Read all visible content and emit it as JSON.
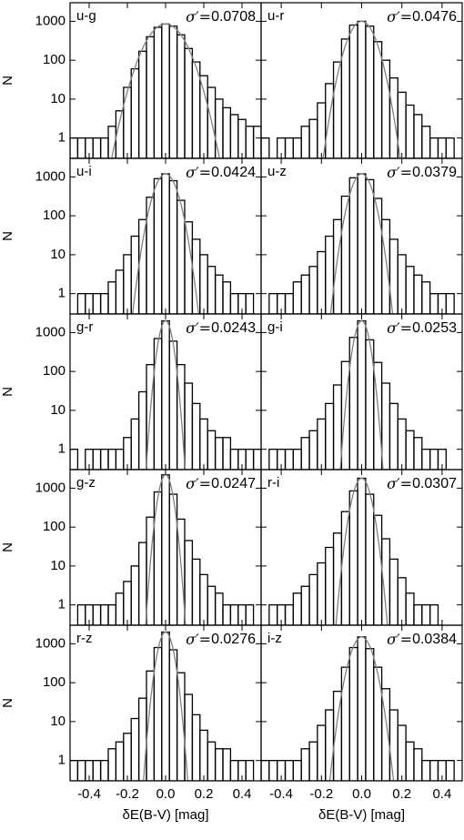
{
  "chart_data": [
    {
      "type": "histogram",
      "title": "u-g",
      "annotation": {
        "label": "σ′=",
        "value": 0.0708
      },
      "ylabel": "N",
      "bins": [
        -0.5,
        -0.46,
        -0.42,
        -0.38,
        -0.34,
        -0.3,
        -0.26,
        -0.22,
        -0.18,
        -0.14,
        -0.1,
        -0.06,
        -0.02,
        0.02,
        0.06,
        0.1,
        0.14,
        0.18,
        0.22,
        0.26,
        0.3,
        0.34,
        0.38,
        0.42,
        0.46,
        0.5
      ],
      "values": [
        1,
        1,
        1,
        1,
        1,
        2,
        5,
        20,
        60,
        170,
        400,
        700,
        850,
        750,
        450,
        200,
        90,
        40,
        20,
        10,
        6,
        4,
        3,
        2,
        2
      ],
      "color": "#000000",
      "fit": {
        "peak": 850,
        "color": "#808080"
      },
      "xlim": [
        -0.5,
        0.5
      ],
      "ylim": [
        0.3,
        3000
      ],
      "log_y": true,
      "yticks": [
        1,
        10,
        100,
        1000
      ],
      "xticks": [
        -0.4,
        -0.2,
        {
          "value": 0,
          "label": "0.0"
        },
        0.2,
        0.4
      ]
    },
    {
      "type": "histogram",
      "title": "u-r",
      "annotation": {
        "label": "σ′=",
        "value": 0.0476
      },
      "bins": [
        -0.5,
        -0.46,
        -0.42,
        -0.38,
        -0.34,
        -0.3,
        -0.26,
        -0.22,
        -0.18,
        -0.14,
        -0.1,
        -0.06,
        -0.02,
        0.02,
        0.06,
        0.1,
        0.14,
        0.18,
        0.22,
        0.26,
        0.3,
        0.34,
        0.38,
        0.42,
        0.46,
        0.5
      ],
      "values": [
        1,
        0,
        1,
        1,
        1,
        2,
        3,
        8,
        25,
        90,
        350,
        800,
        1000,
        750,
        300,
        100,
        35,
        15,
        7,
        4,
        2,
        1,
        1,
        1,
        0
      ],
      "color": "#000000",
      "fit": {
        "peak": 1000,
        "color": "#808080"
      },
      "xlim": [
        -0.5,
        0.5
      ],
      "ylim": [
        0.3,
        3000
      ],
      "log_y": true,
      "yticks": [
        1,
        10,
        100,
        1000
      ],
      "xticks": [
        -0.4,
        -0.2,
        {
          "value": 0,
          "label": "0.0"
        },
        0.2,
        0.4
      ]
    },
    {
      "type": "histogram",
      "title": "u-i",
      "annotation": {
        "label": "σ′=",
        "value": 0.0424
      },
      "ylabel": "N",
      "bins": [
        -0.5,
        -0.46,
        -0.42,
        -0.38,
        -0.34,
        -0.3,
        -0.26,
        -0.22,
        -0.18,
        -0.14,
        -0.1,
        -0.06,
        -0.02,
        0.02,
        0.06,
        0.1,
        0.14,
        0.18,
        0.22,
        0.26,
        0.3,
        0.34,
        0.38,
        0.42,
        0.46,
        0.5
      ],
      "values": [
        0,
        1,
        1,
        1,
        1,
        2,
        4,
        10,
        30,
        80,
        300,
        900,
        1200,
        800,
        250,
        70,
        25,
        10,
        5,
        3,
        2,
        1,
        1,
        1,
        0
      ],
      "color": "#000000",
      "fit": {
        "peak": 1200,
        "color": "#808080"
      },
      "xlim": [
        -0.5,
        0.5
      ],
      "ylim": [
        0.3,
        3000
      ],
      "log_y": true,
      "yticks": [
        1,
        10,
        100,
        1000
      ],
      "xticks": [
        -0.4,
        -0.2,
        {
          "value": 0,
          "label": "0.0"
        },
        0.2,
        0.4
      ]
    },
    {
      "type": "histogram",
      "title": "u-z",
      "annotation": {
        "label": "σ′=",
        "value": 0.0379
      },
      "bins": [
        -0.5,
        -0.46,
        -0.42,
        -0.38,
        -0.34,
        -0.3,
        -0.26,
        -0.22,
        -0.18,
        -0.14,
        -0.1,
        -0.06,
        -0.02,
        0.02,
        0.06,
        0.1,
        0.14,
        0.18,
        0.22,
        0.26,
        0.3,
        0.34,
        0.38,
        0.42,
        0.46,
        0.5
      ],
      "values": [
        0,
        1,
        1,
        1,
        2,
        3,
        5,
        12,
        30,
        80,
        320,
        950,
        1200,
        850,
        280,
        80,
        25,
        10,
        5,
        3,
        2,
        1,
        1,
        1,
        0
      ],
      "color": "#000000",
      "fit": {
        "peak": 1200,
        "color": "#808080"
      },
      "xlim": [
        -0.5,
        0.5
      ],
      "ylim": [
        0.3,
        3000
      ],
      "log_y": true,
      "yticks": [
        1,
        10,
        100,
        1000
      ],
      "xticks": [
        -0.4,
        -0.2,
        {
          "value": 0,
          "label": "0.0"
        },
        0.2,
        0.4
      ]
    },
    {
      "type": "histogram",
      "title": "g-r",
      "annotation": {
        "label": "σ′=",
        "value": 0.0243
      },
      "ylabel": "N",
      "bins": [
        -0.5,
        -0.46,
        -0.42,
        -0.38,
        -0.34,
        -0.3,
        -0.26,
        -0.22,
        -0.18,
        -0.14,
        -0.1,
        -0.06,
        -0.02,
        0.02,
        0.06,
        0.1,
        0.14,
        0.18,
        0.22,
        0.26,
        0.3,
        0.34,
        0.38,
        0.42,
        0.46,
        0.5
      ],
      "values": [
        1,
        0,
        1,
        1,
        1,
        1,
        1,
        2,
        6,
        30,
        150,
        700,
        2000,
        600,
        150,
        50,
        15,
        6,
        3,
        2,
        2,
        1,
        1,
        1,
        1
      ],
      "color": "#000000",
      "fit": {
        "peak": 2000,
        "color": "#808080"
      },
      "xlim": [
        -0.5,
        0.5
      ],
      "ylim": [
        0.3,
        3000
      ],
      "log_y": true,
      "yticks": [
        1,
        10,
        100,
        1000
      ],
      "xticks": [
        -0.4,
        -0.2,
        {
          "value": 0,
          "label": "0.0"
        },
        0.2,
        0.4
      ]
    },
    {
      "type": "histogram",
      "title": "g-i",
      "annotation": {
        "label": "σ′=",
        "value": 0.0253
      },
      "bins": [
        -0.5,
        -0.46,
        -0.42,
        -0.38,
        -0.34,
        -0.3,
        -0.26,
        -0.22,
        -0.18,
        -0.14,
        -0.1,
        -0.06,
        -0.02,
        0.02,
        0.06,
        0.1,
        0.14,
        0.18,
        0.22,
        0.26,
        0.3,
        0.34,
        0.38,
        0.42,
        0.46,
        0.5
      ],
      "values": [
        0,
        1,
        1,
        1,
        1,
        2,
        3,
        6,
        15,
        45,
        180,
        750,
        2000,
        650,
        170,
        50,
        15,
        6,
        3,
        2,
        1,
        1,
        1,
        0,
        0
      ],
      "color": "#000000",
      "fit": {
        "peak": 2000,
        "color": "#808080"
      },
      "xlim": [
        -0.5,
        0.5
      ],
      "ylim": [
        0.3,
        3000
      ],
      "log_y": true,
      "yticks": [
        1,
        10,
        100,
        1000
      ],
      "xticks": [
        -0.4,
        -0.2,
        {
          "value": 0,
          "label": "0.0"
        },
        0.2,
        0.4
      ]
    },
    {
      "type": "histogram",
      "title": "g-z",
      "annotation": {
        "label": "σ′=",
        "value": 0.0247
      },
      "ylabel": "N",
      "bins": [
        -0.5,
        -0.46,
        -0.42,
        -0.38,
        -0.34,
        -0.3,
        -0.26,
        -0.22,
        -0.18,
        -0.14,
        -0.1,
        -0.06,
        -0.02,
        0.02,
        0.06,
        0.1,
        0.14,
        0.18,
        0.22,
        0.26,
        0.3,
        0.34,
        0.38,
        0.42,
        0.46,
        0.5
      ],
      "values": [
        0,
        1,
        1,
        1,
        1,
        1,
        2,
        4,
        10,
        40,
        180,
        800,
        2200,
        700,
        160,
        45,
        15,
        6,
        3,
        2,
        1,
        1,
        1,
        1,
        0
      ],
      "color": "#000000",
      "fit": {
        "peak": 2200,
        "color": "#808080"
      },
      "xlim": [
        -0.5,
        0.5
      ],
      "ylim": [
        0.3,
        3000
      ],
      "log_y": true,
      "yticks": [
        1,
        10,
        100,
        1000
      ],
      "xticks": [
        -0.4,
        -0.2,
        {
          "value": 0,
          "label": "0.0"
        },
        0.2,
        0.4
      ]
    },
    {
      "type": "histogram",
      "title": "r-i",
      "annotation": {
        "label": "σ′=",
        "value": 0.0307
      },
      "bins": [
        -0.5,
        -0.46,
        -0.42,
        -0.38,
        -0.34,
        -0.3,
        -0.26,
        -0.22,
        -0.18,
        -0.14,
        -0.1,
        -0.06,
        -0.02,
        0.02,
        0.06,
        0.1,
        0.14,
        0.18,
        0.22,
        0.26,
        0.3,
        0.34,
        0.38,
        0.42,
        0.46,
        0.5
      ],
      "values": [
        0,
        1,
        1,
        1,
        2,
        3,
        6,
        12,
        30,
        70,
        250,
        850,
        1800,
        700,
        200,
        50,
        15,
        5,
        2,
        1,
        1,
        1,
        0,
        0,
        0
      ],
      "color": "#000000",
      "fit": {
        "peak": 1800,
        "color": "#808080"
      },
      "xlim": [
        -0.5,
        0.5
      ],
      "ylim": [
        0.3,
        3000
      ],
      "log_y": true,
      "yticks": [
        1,
        10,
        100,
        1000
      ],
      "xticks": [
        -0.4,
        -0.2,
        {
          "value": 0,
          "label": "0.0"
        },
        0.2,
        0.4
      ]
    },
    {
      "type": "histogram",
      "title": "r-z",
      "annotation": {
        "label": "σ′=",
        "value": 0.0276
      },
      "ylabel": "N",
      "xlabel": "δE(B-V) [mag]",
      "bins": [
        -0.5,
        -0.46,
        -0.42,
        -0.38,
        -0.34,
        -0.3,
        -0.26,
        -0.22,
        -0.18,
        -0.14,
        -0.1,
        -0.06,
        -0.02,
        0.02,
        0.06,
        0.1,
        0.14,
        0.18,
        0.22,
        0.26,
        0.3,
        0.34,
        0.38,
        0.42,
        0.46,
        0.5
      ],
      "values": [
        1,
        1,
        1,
        1,
        1,
        2,
        3,
        5,
        12,
        40,
        200,
        800,
        2000,
        700,
        180,
        50,
        15,
        6,
        3,
        2,
        2,
        1,
        1,
        1,
        0
      ],
      "color": "#000000",
      "fit": {
        "peak": 2000,
        "color": "#808080"
      },
      "xlim": [
        -0.5,
        0.5
      ],
      "ylim": [
        0.3,
        3000
      ],
      "log_y": true,
      "yticks": [
        1,
        10,
        100,
        1000
      ],
      "xticks": [
        -0.4,
        -0.2,
        {
          "value": 0,
          "label": "0.0"
        },
        0.2,
        0.4
      ]
    },
    {
      "type": "histogram",
      "title": "i-z",
      "annotation": {
        "label": "σ′=",
        "value": 0.0384
      },
      "xlabel": "δE(B-V) [mag]",
      "bins": [
        -0.5,
        -0.46,
        -0.42,
        -0.38,
        -0.34,
        -0.3,
        -0.26,
        -0.22,
        -0.18,
        -0.14,
        -0.1,
        -0.06,
        -0.02,
        0.02,
        0.06,
        0.1,
        0.14,
        0.18,
        0.22,
        0.26,
        0.3,
        0.34,
        0.38,
        0.42,
        0.46,
        0.5
      ],
      "values": [
        1,
        1,
        1,
        1,
        1,
        2,
        3,
        8,
        20,
        60,
        250,
        800,
        1500,
        750,
        250,
        70,
        20,
        8,
        3,
        2,
        1,
        1,
        1,
        1,
        0
      ],
      "color": "#000000",
      "fit": {
        "peak": 1500,
        "color": "#808080"
      },
      "xlim": [
        -0.5,
        0.5
      ],
      "ylim": [
        0.3,
        3000
      ],
      "log_y": true,
      "yticks": [
        1,
        10,
        100,
        1000
      ],
      "xticks": [
        -0.4,
        -0.2,
        {
          "value": 0,
          "label": "0.0"
        },
        0.2,
        0.4
      ]
    }
  ]
}
